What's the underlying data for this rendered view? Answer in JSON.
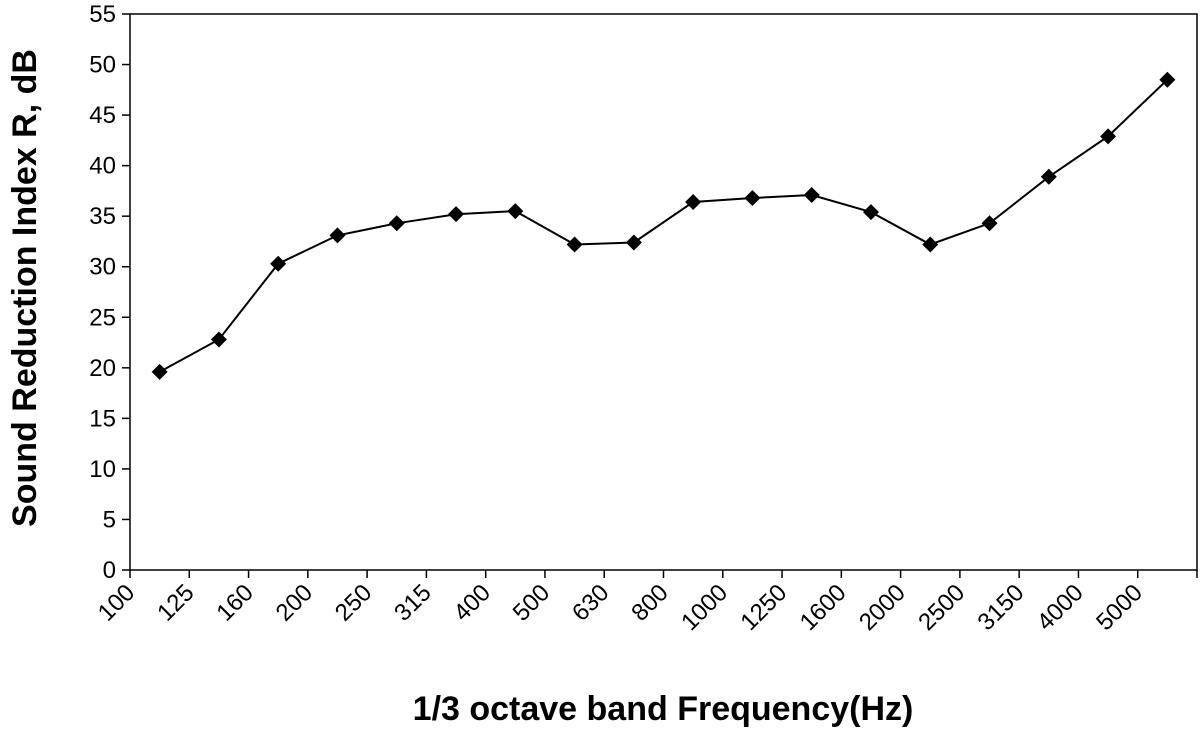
{
  "chart_data": {
    "type": "line",
    "title": "",
    "xlabel": "1/3 octave band Frequency(Hz)",
    "ylabel": "Sound Reduction Index R, dB",
    "ylim": [
      0,
      55
    ],
    "yticks": [
      0,
      5,
      10,
      15,
      20,
      25,
      30,
      35,
      40,
      45,
      50,
      55
    ],
    "grid": false,
    "legend": "none",
    "marker": "diamond",
    "colors": {
      "line": "#000000",
      "marker": "#000000",
      "axis": "#000000"
    },
    "categories": [
      "100",
      "125",
      "160",
      "200",
      "250",
      "315",
      "400",
      "500",
      "630",
      "800",
      "1000",
      "1250",
      "1600",
      "2000",
      "2500",
      "3150",
      "4000",
      "5000"
    ],
    "series": [
      {
        "name": "",
        "values": [
          19.6,
          22.8,
          30.3,
          33.1,
          34.3,
          35.2,
          35.5,
          32.2,
          32.4,
          36.4,
          36.8,
          37.1,
          35.4,
          32.2,
          34.3,
          38.9,
          42.9,
          48.5
        ]
      }
    ]
  }
}
